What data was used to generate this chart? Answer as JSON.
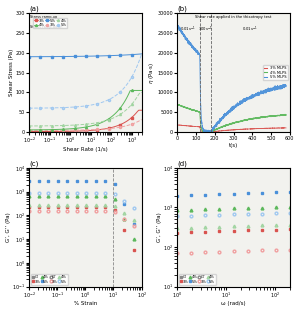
{
  "colors": {
    "3pct": "#d9534f",
    "4pct": "#5cb85c",
    "5pct": "#4a90d9"
  },
  "colors_light": {
    "3pct": "#f0a0a0",
    "4pct": "#a0d4a0",
    "5pct": "#a0c8f0"
  },
  "bg_color": "#ffffff",
  "panel_bg": "#f2f2ee",
  "a_xlabel": "Shear Rate (1/s)",
  "a_ylabel": "Shear Stress (Pa)",
  "b_xlabel": "t(s)",
  "b_ylabel": "η (Pa·s)",
  "c_xlabel": "% Strain",
  "c_ylabel": "G’, G’’ (Pa)",
  "d_xlabel": "ω (rad/s)",
  "d_ylabel": "G’, G’’ (Pa)"
}
